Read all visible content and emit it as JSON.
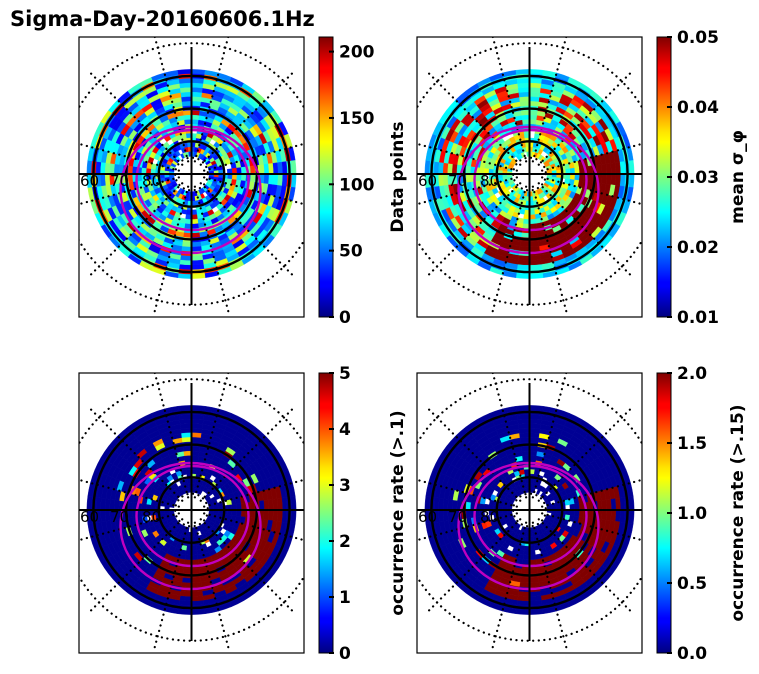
{
  "chart_data": {
    "type": "heatmap",
    "title": "Sigma-Day-20160606.1Hz",
    "projection": "polar (magnetic latitude / MLT)",
    "radial_tick_labels": [
      "60",
      "70",
      "80"
    ],
    "grid": {
      "solid_latitude_circles": [
        60,
        70,
        80
      ],
      "dotted_latitude_circles": [
        50,
        85
      ],
      "meridians": "dotted every 30 deg",
      "cross_axes": true
    },
    "oval_boundaries": {
      "color": "#c000c0",
      "count": 2
    },
    "panels": [
      {
        "id": "data-points",
        "colorbar_label": "Data points",
        "colormap": "jet",
        "vmin": 0,
        "vmax": 211,
        "colorbar_ticks": [
          "0",
          "50",
          "100",
          "150",
          "200"
        ],
        "tick_values": [
          0,
          50,
          100,
          150,
          200
        ],
        "pattern": "mostly 20-120 with rings of 150-200 near 60-65 and 75 deg"
      },
      {
        "id": "mean-sigma-phi",
        "colorbar_label": "mean σ_φ",
        "colormap": "jet",
        "vmin": 0.01,
        "vmax": 0.05,
        "colorbar_ticks": [
          "0.01",
          "0.02",
          "0.03",
          "0.04",
          "0.05"
        ],
        "tick_values": [
          0.01,
          0.02,
          0.03,
          0.04,
          0.05
        ],
        "pattern": "0.02-0.03 at low latitude, saturated 0.05 across auroral oval on dusk/midnight side"
      },
      {
        "id": "occurrence-rate-01",
        "colorbar_label": "occurrence rate (>.1)",
        "colormap": "jet",
        "vmin": 0,
        "vmax": 5,
        "colorbar_ticks": [
          "0",
          "1",
          "2",
          "3",
          "4",
          "5"
        ],
        "tick_values": [
          0,
          1,
          2,
          3,
          4,
          5
        ],
        "pattern": "near 0 outside oval, saturated 5 within auroral oval on dusk/midnight side"
      },
      {
        "id": "occurrence-rate-015",
        "colorbar_label": "occurrence rate (>.15)",
        "colormap": "jet",
        "vmin": 0.0,
        "vmax": 2.0,
        "colorbar_ticks": [
          "0.0",
          "0.5",
          "1.0",
          "1.5",
          "2.0"
        ],
        "tick_values": [
          0.0,
          0.5,
          1.0,
          1.5,
          2.0
        ],
        "pattern": "near 0 outside oval, saturated 2.0 within auroral oval on dusk/midnight side"
      }
    ]
  }
}
